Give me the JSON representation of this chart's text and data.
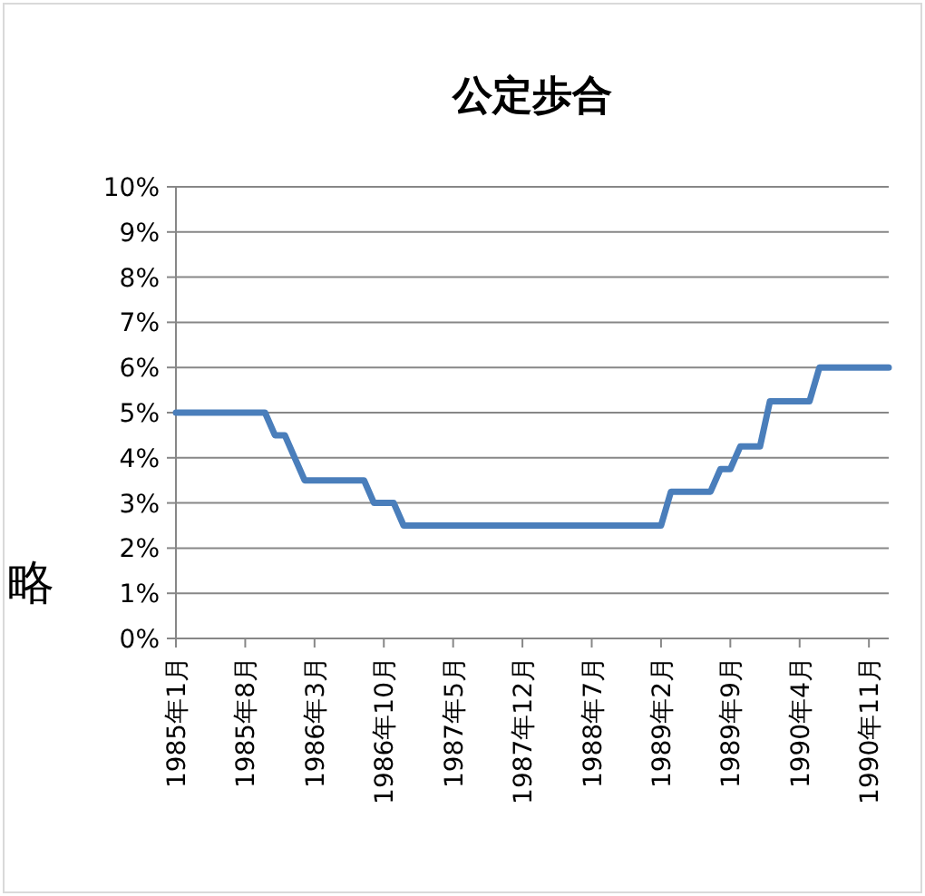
{
  "chart_data": {
    "type": "line",
    "title": "公定歩合",
    "categories": [
      "1985年1月",
      null,
      null,
      null,
      null,
      null,
      null,
      "1985年8月",
      null,
      null,
      null,
      null,
      null,
      null,
      "1986年3月",
      null,
      null,
      null,
      null,
      null,
      null,
      "1986年10月",
      null,
      null,
      null,
      null,
      null,
      null,
      "1987年5月",
      null,
      null,
      null,
      null,
      null,
      null,
      "1987年12月",
      null,
      null,
      null,
      null,
      null,
      null,
      "1988年7月",
      null,
      null,
      null,
      null,
      null,
      null,
      "1989年2月",
      null,
      null,
      null,
      null,
      null,
      null,
      "1989年9月",
      null,
      null,
      null,
      null,
      null,
      null,
      "1990年4月",
      null,
      null,
      null,
      null,
      null,
      null,
      "1990年11月",
      null,
      null
    ],
    "series": [
      {
        "color": "#4a7ebb",
        "values": [
          5,
          5,
          5,
          5,
          5,
          5,
          5,
          5,
          5,
          5,
          4.5,
          4.5,
          4,
          3.5,
          3.5,
          3.5,
          3.5,
          3.5,
          3.5,
          3.5,
          3,
          3,
          3,
          2.5,
          2.5,
          2.5,
          2.5,
          2.5,
          2.5,
          2.5,
          2.5,
          2.5,
          2.5,
          2.5,
          2.5,
          2.5,
          2.5,
          2.5,
          2.5,
          2.5,
          2.5,
          2.5,
          2.5,
          2.5,
          2.5,
          2.5,
          2.5,
          2.5,
          2.5,
          2.5,
          3.25,
          3.25,
          3.25,
          3.25,
          3.25,
          3.75,
          3.75,
          4.25,
          4.25,
          4.25,
          5.25,
          5.25,
          5.25,
          5.25,
          5.25,
          6,
          6,
          6,
          6,
          6,
          6,
          6,
          6
        ]
      }
    ],
    "ylim": [
      0,
      10
    ],
    "yticks": [
      {
        "value": 0,
        "label": "0%"
      },
      {
        "value": 1,
        "label": "1%"
      },
      {
        "value": 2,
        "label": "2%"
      },
      {
        "value": 3,
        "label": "3%"
      },
      {
        "value": 4,
        "label": "4%"
      },
      {
        "value": 5,
        "label": "5%"
      },
      {
        "value": 6,
        "label": "6%"
      },
      {
        "value": 7,
        "label": "7%"
      },
      {
        "value": 8,
        "label": "8%"
      },
      {
        "value": 9,
        "label": "9%"
      },
      {
        "value": 10,
        "label": "10%"
      }
    ],
    "grid": "y",
    "marker": "none",
    "line_style": "solid",
    "annotations": [
      "略"
    ]
  }
}
